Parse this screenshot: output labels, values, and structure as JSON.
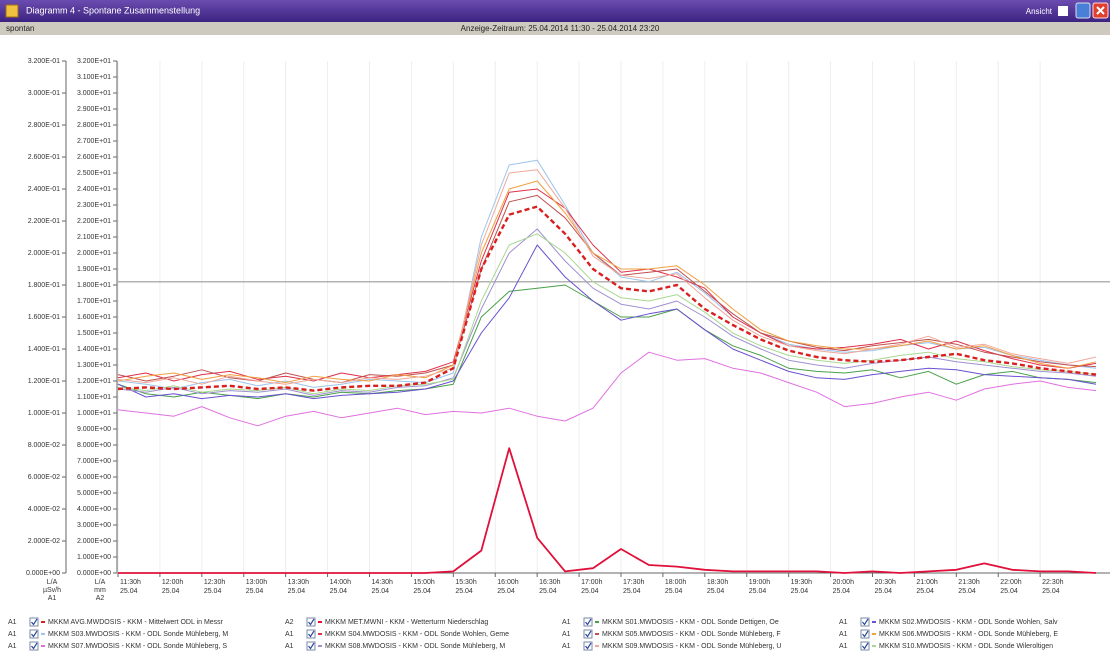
{
  "window": {
    "title": "Diagramm 4 - Spontane Zusammenstellung",
    "view_label": "Ansicht"
  },
  "toolbar": {
    "left": "spontan",
    "range": "Anzeige-Zeitraum: 25.04.2014 11:30 - 25.04.2014 23:20"
  },
  "chart_data": {
    "type": "line",
    "grid": true,
    "x": [
      "11:30",
      "11:50",
      "12:10",
      "12:30",
      "12:50",
      "13:10",
      "13:30",
      "13:50",
      "14:10",
      "14:30",
      "14:50",
      "15:10",
      "15:30",
      "15:50",
      "16:10",
      "16:30",
      "16:50",
      "17:10",
      "17:30",
      "17:50",
      "18:10",
      "18:30",
      "18:50",
      "19:10",
      "19:30",
      "19:50",
      "20:10",
      "20:30",
      "20:50",
      "21:10",
      "21:30",
      "21:50",
      "22:10",
      "22:30",
      "22:50",
      "23:10"
    ],
    "xlim": [
      "11:30",
      "23:20"
    ],
    "xticks": [
      {
        "value": "11:30",
        "label": "11:30h"
      },
      {
        "value": "12:00",
        "label": "12:00h"
      },
      {
        "value": "12:30",
        "label": "12:30h"
      },
      {
        "value": "13:00",
        "label": "13:00h"
      },
      {
        "value": "13:30",
        "label": "13:30h"
      },
      {
        "value": "14:00",
        "label": "14:00h"
      },
      {
        "value": "14:30",
        "label": "14:30h"
      },
      {
        "value": "15:00",
        "label": "15:00h"
      },
      {
        "value": "15:30",
        "label": "15:30h"
      },
      {
        "value": "16:00",
        "label": "16:00h"
      },
      {
        "value": "16:30",
        "label": "16:30h"
      },
      {
        "value": "17:00",
        "label": "17:00h"
      },
      {
        "value": "17:30",
        "label": "17:30h"
      },
      {
        "value": "18:00",
        "label": "18:00h"
      },
      {
        "value": "18:30",
        "label": "18:30h"
      },
      {
        "value": "19:00",
        "label": "19:00h"
      },
      {
        "value": "19:30",
        "label": "19:30h"
      },
      {
        "value": "20:00",
        "label": "20:00h"
      },
      {
        "value": "20:30",
        "label": "20:30h"
      },
      {
        "value": "21:00",
        "label": "21:00h"
      },
      {
        "value": "21:30",
        "label": "21:30h"
      },
      {
        "value": "22:00",
        "label": "22:00h"
      },
      {
        "value": "22:30",
        "label": "22:30h"
      }
    ],
    "x_date": "25.04",
    "ylim": [
      0,
      0.32
    ],
    "yticks": [
      {
        "value": 0,
        "label": "0.000E+00"
      },
      {
        "value": 0.02,
        "label": "2.000E-02"
      },
      {
        "value": 0.04,
        "label": "4.000E-02"
      },
      {
        "value": 0.06,
        "label": "6.000E-02"
      },
      {
        "value": 0.08,
        "label": "8.000E-02"
      },
      {
        "value": 0.1,
        "label": "1.000E-01"
      },
      {
        "value": 0.12,
        "label": "1.200E-01"
      },
      {
        "value": 0.14,
        "label": "1.400E-01"
      },
      {
        "value": 0.16,
        "label": "1.600E-01"
      },
      {
        "value": 0.18,
        "label": "1.800E-01"
      },
      {
        "value": 0.2,
        "label": "2.000E-01"
      },
      {
        "value": 0.22,
        "label": "2.200E-01"
      },
      {
        "value": 0.24,
        "label": "2.400E-01"
      },
      {
        "value": 0.26,
        "label": "2.600E-01"
      },
      {
        "value": 0.28,
        "label": "2.800E-01"
      },
      {
        "value": 0.3,
        "label": "3.000E-01"
      },
      {
        "value": 0.32,
        "label": "3.200E-01"
      }
    ],
    "y_label_lines": [
      "L/A",
      "µSv/h",
      "A1"
    ],
    "y2lim": [
      0,
      32
    ],
    "y2ticks": [
      {
        "value": 0,
        "label": "0.000E+00"
      },
      {
        "value": 1,
        "label": "1.000E+00"
      },
      {
        "value": 2,
        "label": "2.000E+00"
      },
      {
        "value": 3,
        "label": "3.000E+00"
      },
      {
        "value": 4,
        "label": "4.000E+00"
      },
      {
        "value": 5,
        "label": "5.000E+00"
      },
      {
        "value": 6,
        "label": "6.000E+00"
      },
      {
        "value": 7,
        "label": "7.000E+00"
      },
      {
        "value": 8,
        "label": "8.000E+00"
      },
      {
        "value": 9,
        "label": "9.000E+00"
      },
      {
        "value": 10,
        "label": "1.000E+01"
      },
      {
        "value": 11,
        "label": "1.100E+01"
      },
      {
        "value": 12,
        "label": "1.200E+01"
      },
      {
        "value": 13,
        "label": "1.300E+01"
      },
      {
        "value": 14,
        "label": "1.400E+01"
      },
      {
        "value": 15,
        "label": "1.500E+01"
      },
      {
        "value": 16,
        "label": "1.600E+01"
      },
      {
        "value": 17,
        "label": "1.700E+01"
      },
      {
        "value": 18,
        "label": "1.800E+01"
      },
      {
        "value": 19,
        "label": "1.900E+01"
      },
      {
        "value": 20,
        "label": "2.000E+01"
      },
      {
        "value": 21,
        "label": "2.100E+01"
      },
      {
        "value": 22,
        "label": "2.200E+01"
      },
      {
        "value": 23,
        "label": "2.300E+01"
      },
      {
        "value": 24,
        "label": "2.400E+01"
      },
      {
        "value": 25,
        "label": "2.500E+01"
      },
      {
        "value": 26,
        "label": "2.600E+01"
      },
      {
        "value": 27,
        "label": "2.700E+01"
      },
      {
        "value": 28,
        "label": "2.800E+01"
      },
      {
        "value": 29,
        "label": "2.900E+01"
      },
      {
        "value": 30,
        "label": "3.000E+01"
      },
      {
        "value": 31,
        "label": "3.100E+01"
      },
      {
        "value": 32,
        "label": "3.200E+01"
      }
    ],
    "y2_label_lines": [
      "L/A",
      "mm",
      "A2"
    ],
    "reference_line": 0.182,
    "series": [
      {
        "name": "MKKM AVG.MWDOSIS - KKM - Mittelwert ODL in Messr",
        "axis_label": "A1",
        "color": "#d91f1f",
        "dashed": true,
        "values": [
          0.115,
          0.116,
          0.115,
          0.116,
          0.117,
          0.115,
          0.116,
          0.114,
          0.116,
          0.117,
          0.117,
          0.119,
          0.128,
          0.19,
          0.224,
          0.229,
          0.212,
          0.19,
          0.178,
          0.176,
          0.18,
          0.165,
          0.155,
          0.146,
          0.139,
          0.135,
          0.133,
          0.132,
          0.133,
          0.135,
          0.137,
          0.133,
          0.131,
          0.128,
          0.126,
          0.124
        ]
      },
      {
        "name": "MKKM MET.MWNI - KKM - Wetterturm Niederschlag",
        "axis_label": "A2",
        "axis": "y2",
        "color": "#e0103a",
        "values": [
          0,
          0,
          0,
          0,
          0,
          0,
          0,
          0,
          0,
          0,
          0,
          0,
          0.1,
          1.4,
          7.8,
          2.2,
          0.1,
          0.3,
          1.5,
          0.5,
          0.4,
          0.2,
          0.1,
          0.1,
          0.1,
          0.1,
          0,
          0.1,
          0,
          0.1,
          0.2,
          0.6,
          0.2,
          0.1,
          0.1,
          0
        ]
      },
      {
        "name": "MKKM S01.MWDOSIS - KKM - ODL Sonde Dettigen, Oe",
        "axis_label": "A1",
        "color": "#4aa04a",
        "values": [
          0.118,
          0.112,
          0.11,
          0.113,
          0.111,
          0.109,
          0.112,
          0.11,
          0.113,
          0.112,
          0.114,
          0.115,
          0.118,
          0.16,
          0.176,
          0.178,
          0.18,
          0.17,
          0.16,
          0.16,
          0.165,
          0.152,
          0.142,
          0.136,
          0.128,
          0.126,
          0.125,
          0.127,
          0.122,
          0.126,
          0.118,
          0.124,
          0.126,
          0.122,
          0.121,
          0.119
        ]
      },
      {
        "name": "MKKM S02.MWDOSIS - KKM - ODL Sonde Wohlen, Salv",
        "axis_label": "A1",
        "color": "#6a50d0",
        "values": [
          0.118,
          0.11,
          0.112,
          0.109,
          0.111,
          0.11,
          0.112,
          0.109,
          0.111,
          0.112,
          0.113,
          0.115,
          0.12,
          0.15,
          0.172,
          0.205,
          0.185,
          0.17,
          0.158,
          0.162,
          0.165,
          0.152,
          0.14,
          0.133,
          0.126,
          0.122,
          0.121,
          0.124,
          0.126,
          0.128,
          0.127,
          0.124,
          0.123,
          0.122,
          0.121,
          0.118
        ]
      },
      {
        "name": "MKKM S03.MWDOSIS - KKM - ODL Sonde Mühleberg, M",
        "axis_label": "A1",
        "color": "#9cc4ee",
        "values": [
          0.12,
          0.118,
          0.115,
          0.119,
          0.121,
          0.117,
          0.12,
          0.116,
          0.118,
          0.121,
          0.12,
          0.119,
          0.125,
          0.21,
          0.255,
          0.258,
          0.23,
          0.2,
          0.185,
          0.182,
          0.188,
          0.175,
          0.16,
          0.15,
          0.143,
          0.14,
          0.138,
          0.139,
          0.142,
          0.144,
          0.14,
          0.141,
          0.136,
          0.133,
          0.13,
          0.128
        ]
      },
      {
        "name": "MKKM S04.MWDOSIS - KKM - ODL Sonde Wohlen, Geme",
        "axis_label": "A1",
        "color": "#e0304a",
        "values": [
          0.122,
          0.125,
          0.12,
          0.124,
          0.126,
          0.121,
          0.123,
          0.12,
          0.125,
          0.122,
          0.124,
          0.126,
          0.132,
          0.195,
          0.238,
          0.24,
          0.228,
          0.205,
          0.188,
          0.19,
          0.185,
          0.178,
          0.16,
          0.15,
          0.142,
          0.14,
          0.141,
          0.143,
          0.146,
          0.14,
          0.145,
          0.139,
          0.134,
          0.13,
          0.128,
          0.131
        ]
      },
      {
        "name": "MKKM S05.MWDOSIS - KKM - ODL Sonde Mühleberg, F",
        "axis_label": "A1",
        "color": "#c05050",
        "values": [
          0.124,
          0.12,
          0.123,
          0.127,
          0.122,
          0.12,
          0.125,
          0.121,
          0.119,
          0.124,
          0.123,
          0.125,
          0.13,
          0.19,
          0.232,
          0.236,
          0.222,
          0.2,
          0.186,
          0.188,
          0.19,
          0.176,
          0.162,
          0.15,
          0.145,
          0.141,
          0.139,
          0.142,
          0.144,
          0.146,
          0.143,
          0.138,
          0.135,
          0.132,
          0.13,
          0.129
        ]
      },
      {
        "name": "MKKM S06.MWDOSIS - KKM - ODL Sonde Mühleberg, E",
        "axis_label": "A1",
        "color": "#f0a040",
        "values": [
          0.12,
          0.123,
          0.125,
          0.121,
          0.124,
          0.122,
          0.119,
          0.123,
          0.121,
          0.12,
          0.124,
          0.122,
          0.13,
          0.2,
          0.24,
          0.245,
          0.225,
          0.2,
          0.19,
          0.19,
          0.192,
          0.18,
          0.165,
          0.152,
          0.145,
          0.142,
          0.14,
          0.14,
          0.142,
          0.145,
          0.14,
          0.142,
          0.136,
          0.131,
          0.128,
          0.132
        ]
      },
      {
        "name": "MKKM S07.MWDOSIS - KKM - ODL Sonde Mühleberg, S",
        "axis_label": "A1",
        "color": "#e070e0",
        "values": [
          0.102,
          0.1,
          0.098,
          0.104,
          0.097,
          0.092,
          0.098,
          0.101,
          0.097,
          0.1,
          0.103,
          0.099,
          0.101,
          0.1,
          0.103,
          0.098,
          0.095,
          0.103,
          0.125,
          0.138,
          0.133,
          0.134,
          0.128,
          0.125,
          0.119,
          0.113,
          0.104,
          0.106,
          0.11,
          0.113,
          0.108,
          0.115,
          0.118,
          0.12,
          0.116,
          0.114
        ]
      },
      {
        "name": "MKKM S08.MWDOSIS - KKM - ODL Sonde Mühleberg, M",
        "axis_label": "A1",
        "color": "#a090d0",
        "values": [
          0.115,
          0.113,
          0.116,
          0.112,
          0.114,
          0.113,
          0.115,
          0.111,
          0.114,
          0.113,
          0.116,
          0.117,
          0.122,
          0.165,
          0.2,
          0.215,
          0.195,
          0.178,
          0.168,
          0.165,
          0.17,
          0.16,
          0.148,
          0.14,
          0.133,
          0.13,
          0.128,
          0.131,
          0.133,
          0.135,
          0.132,
          0.13,
          0.128,
          0.126,
          0.125,
          0.123
        ]
      },
      {
        "name": "MKKM S09.MWDOSIS - KKM - ODL Sonde Mühleberg, U",
        "axis_label": "A1",
        "color": "#f0a898",
        "values": [
          0.121,
          0.119,
          0.122,
          0.118,
          0.123,
          0.12,
          0.118,
          0.121,
          0.119,
          0.122,
          0.121,
          0.123,
          0.128,
          0.205,
          0.25,
          0.252,
          0.228,
          0.198,
          0.186,
          0.184,
          0.187,
          0.172,
          0.158,
          0.148,
          0.142,
          0.139,
          0.137,
          0.14,
          0.143,
          0.148,
          0.141,
          0.143,
          0.137,
          0.134,
          0.131,
          0.135
        ]
      },
      {
        "name": "MKKM S10.MWDOSIS - KKM - ODL Sonde Wileroltigen",
        "axis_label": "A1",
        "color": "#a8d890",
        "values": [
          0.116,
          0.114,
          0.117,
          0.113,
          0.115,
          0.114,
          0.116,
          0.112,
          0.115,
          0.114,
          0.117,
          0.118,
          0.121,
          0.17,
          0.205,
          0.212,
          0.2,
          0.182,
          0.172,
          0.17,
          0.174,
          0.163,
          0.15,
          0.142,
          0.136,
          0.133,
          0.131,
          0.133,
          0.136,
          0.138,
          0.134,
          0.132,
          0.129,
          0.127,
          0.126,
          0.124
        ]
      }
    ]
  }
}
